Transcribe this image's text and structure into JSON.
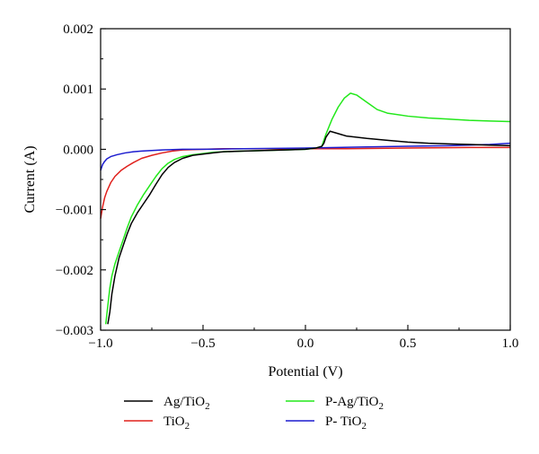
{
  "chart_data": {
    "type": "line",
    "title": "",
    "xlabel": "Potential (V)",
    "ylabel": "Current (A)",
    "xlim": [
      -1.0,
      1.0
    ],
    "ylim": [
      -0.003,
      0.002
    ],
    "xticks": [
      -1.0,
      -0.5,
      0.0,
      0.5,
      1.0
    ],
    "xtick_labels": [
      "−1.0",
      "−0.5",
      "0.0",
      "0.5",
      "1.0"
    ],
    "yticks": [
      -0.003,
      -0.002,
      -0.001,
      0.0,
      0.001,
      0.002
    ],
    "ytick_labels": [
      "−0.003",
      "−0.002",
      "−0.001",
      "0.000",
      "0.001",
      "0.002"
    ],
    "grid": false,
    "legend_position": "bottom",
    "series": [
      {
        "name": "Ag/TiO",
        "subscript": "2",
        "color": "#000000",
        "x": [
          -0.965,
          -0.955,
          -0.945,
          -0.93,
          -0.91,
          -0.89,
          -0.87,
          -0.85,
          -0.82,
          -0.79,
          -0.76,
          -0.73,
          -0.7,
          -0.67,
          -0.64,
          -0.6,
          -0.55,
          -0.5,
          -0.45,
          -0.4,
          -0.3,
          -0.2,
          -0.1,
          0.0,
          0.05,
          0.08,
          0.09,
          0.1,
          0.12,
          0.15,
          0.2,
          0.3,
          0.4,
          0.5,
          0.6,
          0.7,
          0.8,
          0.9,
          1.0
        ],
        "y": [
          -0.0029,
          -0.0027,
          -0.0024,
          -0.0021,
          -0.0018,
          -0.0016,
          -0.0014,
          -0.00123,
          -0.00105,
          -0.0009,
          -0.00075,
          -0.00058,
          -0.00042,
          -0.0003,
          -0.00022,
          -0.00015,
          -0.0001,
          -8e-05,
          -6e-05,
          -4e-05,
          -3e-05,
          -2e-05,
          -1e-05,
          0.0,
          2e-05,
          5e-05,
          0.0001,
          0.0002,
          0.0003,
          0.00027,
          0.00022,
          0.00018,
          0.00015,
          0.00012,
          0.0001,
          9e-05,
          8e-05,
          7e-05,
          6e-05
        ]
      },
      {
        "name": "TiO",
        "subscript": "2",
        "color": "#e0201c",
        "x": [
          -1.0,
          -0.99,
          -0.98,
          -0.97,
          -0.95,
          -0.93,
          -0.9,
          -0.87,
          -0.84,
          -0.8,
          -0.75,
          -0.7,
          -0.65,
          -0.6,
          -0.5,
          -0.4,
          -0.2,
          0.0,
          0.2,
          0.5,
          0.8,
          1.0
        ],
        "y": [
          -0.00115,
          -0.00095,
          -0.0008,
          -0.0007,
          -0.00055,
          -0.00045,
          -0.00035,
          -0.00028,
          -0.00022,
          -0.00015,
          -0.0001,
          -6e-05,
          -3e-05,
          -1e-05,
          0.0,
          1e-05,
          1e-05,
          1e-05,
          1e-05,
          2e-05,
          3e-05,
          3e-05
        ]
      },
      {
        "name": "P-Ag/TiO",
        "subscript": "2",
        "color": "#22e81a",
        "x": [
          -0.975,
          -0.965,
          -0.955,
          -0.945,
          -0.93,
          -0.91,
          -0.89,
          -0.87,
          -0.85,
          -0.82,
          -0.79,
          -0.76,
          -0.73,
          -0.7,
          -0.67,
          -0.64,
          -0.6,
          -0.55,
          -0.5,
          -0.45,
          -0.4,
          -0.3,
          -0.2,
          -0.1,
          0.0,
          0.05,
          0.08,
          0.1,
          0.13,
          0.16,
          0.19,
          0.22,
          0.25,
          0.3,
          0.35,
          0.4,
          0.5,
          0.6,
          0.7,
          0.8,
          0.9,
          1.0
        ],
        "y": [
          -0.0029,
          -0.0026,
          -0.0023,
          -0.0021,
          -0.0019,
          -0.0017,
          -0.0015,
          -0.0013,
          -0.00112,
          -0.00092,
          -0.00075,
          -0.0006,
          -0.00045,
          -0.00032,
          -0.00023,
          -0.00017,
          -0.00012,
          -9e-05,
          -7e-05,
          -5e-05,
          -4e-05,
          -3e-05,
          -2e-05,
          -1e-05,
          0.0,
          2e-05,
          5e-05,
          0.00025,
          0.0005,
          0.0007,
          0.00085,
          0.00093,
          0.0009,
          0.00078,
          0.00066,
          0.0006,
          0.00055,
          0.00052,
          0.0005,
          0.00048,
          0.00047,
          0.00046
        ]
      },
      {
        "name": "P- TiO",
        "subscript": "2",
        "color": "#1c1ccf",
        "x": [
          -1.0,
          -0.995,
          -0.99,
          -0.98,
          -0.97,
          -0.95,
          -0.92,
          -0.88,
          -0.84,
          -0.8,
          -0.75,
          -0.7,
          -0.6,
          -0.5,
          -0.3,
          0.0,
          0.3,
          0.5,
          0.7,
          0.9,
          1.0
        ],
        "y": [
          -0.00035,
          -0.0003,
          -0.00025,
          -0.0002,
          -0.00016,
          -0.00012,
          -9e-05,
          -6e-05,
          -4e-05,
          -3e-05,
          -2e-05,
          -1e-05,
          0.0,
          0.0,
          1e-05,
          2e-05,
          4e-05,
          5e-05,
          6e-05,
          8e-05,
          0.0001
        ]
      }
    ]
  }
}
